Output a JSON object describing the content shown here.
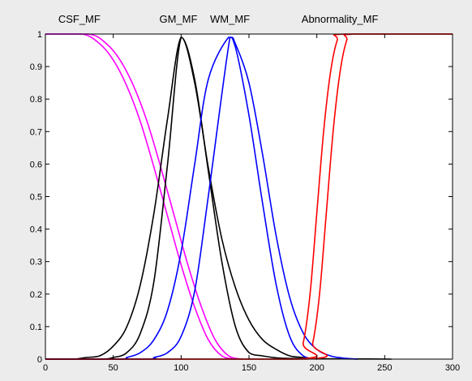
{
  "figure": {
    "background": "#ececec",
    "axes_background": "#ffffff"
  },
  "chart_data": {
    "type": "line",
    "title": "",
    "xlabel": "",
    "ylabel": "",
    "xlim": [
      0,
      300
    ],
    "ylim": [
      0,
      1
    ],
    "xticks": [
      "0",
      "50",
      "100",
      "150",
      "200",
      "250",
      "300"
    ],
    "yticks": [
      "0",
      "0.1",
      "0.2",
      "0.3",
      "0.4",
      "0.5",
      "0.6",
      "0.7",
      "0.8",
      "0.9",
      "1"
    ],
    "grid": false,
    "series_labels": [
      {
        "text": "CSF_MF",
        "x": 25
      },
      {
        "text": "GM_MF",
        "x": 98
      },
      {
        "text": "WM_MF",
        "x": 136
      },
      {
        "text": "Abnormality_MF",
        "x": 217
      }
    ],
    "series": [
      {
        "color": "#ff00ff",
        "x": [
          0,
          27,
          40,
          50,
          60,
          70,
          80,
          90,
          100,
          110,
          120,
          130,
          140
        ],
        "y": [
          1,
          1,
          0.97,
          0.92,
          0.84,
          0.73,
          0.59,
          0.44,
          0.29,
          0.16,
          0.06,
          0.01,
          0
        ]
      },
      {
        "color": "#ff00ff",
        "x": [
          0,
          32,
          45,
          55,
          65,
          75,
          85,
          95,
          105,
          115,
          125,
          135,
          145
        ],
        "y": [
          1,
          1,
          0.97,
          0.92,
          0.84,
          0.73,
          0.59,
          0.44,
          0.29,
          0.16,
          0.06,
          0.01,
          0
        ]
      },
      {
        "color": "#000000",
        "x": [
          0,
          20,
          30,
          40,
          50,
          60,
          70,
          80,
          90,
          100,
          110,
          120,
          130,
          140,
          150,
          160,
          170,
          180,
          190,
          200
        ],
        "y": [
          0,
          0,
          0.005,
          0.01,
          0.04,
          0.1,
          0.23,
          0.45,
          0.74,
          0.99,
          0.85,
          0.59,
          0.37,
          0.22,
          0.12,
          0.06,
          0.03,
          0.01,
          0.005,
          0
        ]
      },
      {
        "color": "#000000",
        "x": [
          0,
          40,
          50,
          60,
          70,
          80,
          90,
          100,
          110,
          120,
          130,
          140,
          150,
          160,
          170,
          180,
          200,
          230,
          255
        ],
        "y": [
          0,
          0,
          0.005,
          0.02,
          0.08,
          0.24,
          0.6,
          0.99,
          0.86,
          0.58,
          0.3,
          0.1,
          0.02,
          0.01,
          0.004,
          0.002,
          0.001,
          0.0005,
          0
        ]
      },
      {
        "color": "#0000ff",
        "x": [
          0,
          55,
          60,
          70,
          80,
          90,
          100,
          110,
          120,
          135,
          140,
          150,
          160,
          170,
          180,
          190,
          200
        ],
        "y": [
          0,
          0,
          0.005,
          0.02,
          0.06,
          0.15,
          0.33,
          0.6,
          0.86,
          0.99,
          0.96,
          0.75,
          0.48,
          0.23,
          0.07,
          0.01,
          0
        ]
      },
      {
        "color": "#0000ff",
        "x": [
          0,
          75,
          80,
          90,
          100,
          110,
          120,
          136,
          140,
          150,
          160,
          170,
          180,
          190,
          200,
          210,
          220,
          230
        ],
        "y": [
          0,
          0,
          0.005,
          0.02,
          0.07,
          0.21,
          0.5,
          0.99,
          0.97,
          0.85,
          0.63,
          0.38,
          0.19,
          0.08,
          0.03,
          0.01,
          0.003,
          0
        ]
      },
      {
        "color": "#ff0000",
        "x": [
          0,
          185,
          190,
          195,
          200,
          205,
          210,
          215,
          220,
          300
        ],
        "y": [
          0,
          0,
          0.05,
          0.2,
          0.45,
          0.7,
          0.88,
          0.98,
          1,
          1
        ]
      },
      {
        "color": "#ff0000",
        "x": [
          0,
          192,
          197,
          202,
          207,
          212,
          217,
          222,
          227,
          300
        ],
        "y": [
          0,
          0,
          0.05,
          0.2,
          0.45,
          0.7,
          0.88,
          0.98,
          1,
          1
        ]
      }
    ]
  }
}
